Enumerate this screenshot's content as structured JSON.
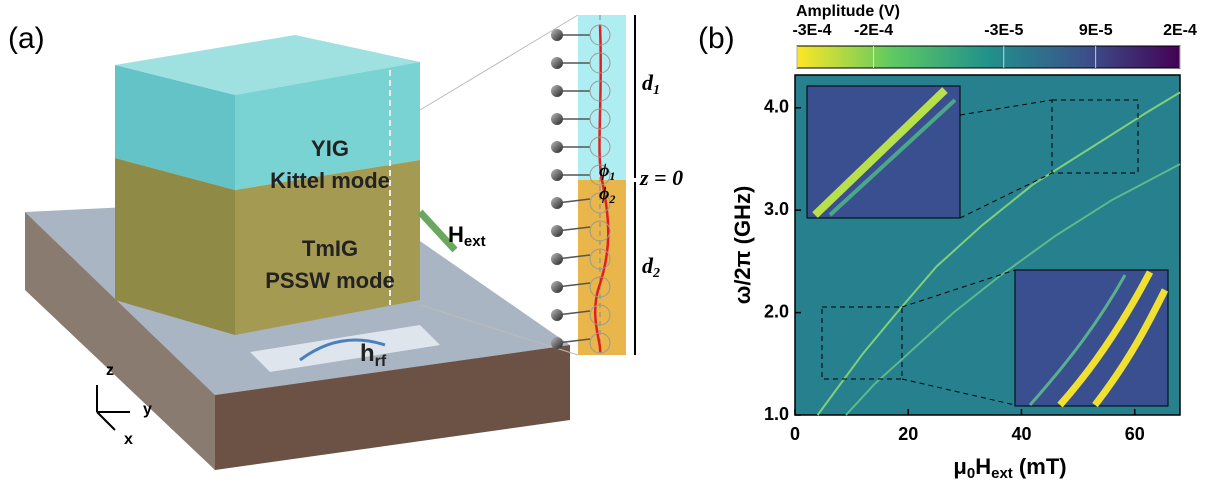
{
  "panel_a": {
    "label": "(a)",
    "yig": "YIG",
    "kittel": "Kittel mode",
    "tmig": "TmIG",
    "pssw": "PSSW mode",
    "hext": [
      "H",
      "ext"
    ],
    "hrf": [
      "h",
      "rf"
    ],
    "d1": [
      "d",
      "1"
    ],
    "d2": [
      "d",
      "2"
    ],
    "phi1": [
      "ϕ",
      "1"
    ],
    "phi2": [
      "ϕ",
      "2"
    ],
    "z0": "z = 0",
    "axis_z": "z",
    "axis_y": "y",
    "axis_x": "x"
  },
  "chart_data": {
    "type": "heatmap",
    "panel_label": "(b)",
    "colorbar_title": "Amplitude (V)",
    "colorbar_lim": [
      -0.0003,
      0.0002
    ],
    "colorbar_ticks": [
      {
        "value": -0.0003,
        "label": "-3E-4"
      },
      {
        "value": -0.0002,
        "label": "-2E-4"
      },
      {
        "value": -3e-05,
        "label": "-3E-5"
      },
      {
        "value": 9e-05,
        "label": "9E-5"
      },
      {
        "value": 0.0002,
        "label": "2E-4"
      }
    ],
    "xlabel": [
      "μ",
      "0",
      "H",
      "ext",
      " (mT)"
    ],
    "ylabel": "ω/2π (GHz)",
    "xlim": [
      0,
      68
    ],
    "ylim": [
      1.0,
      4.32
    ],
    "xticks": [
      0,
      20,
      40,
      60
    ],
    "yticks": [
      {
        "value": 1,
        "label": "1.0"
      },
      {
        "value": 2,
        "label": "2.0"
      },
      {
        "value": 3,
        "label": "3.0"
      },
      {
        "value": 4,
        "label": "4.0"
      }
    ],
    "curves": [
      {
        "x": [
          4,
          8,
          12,
          18,
          25,
          33,
          42,
          52,
          62,
          68
        ],
        "y": [
          1.0,
          1.3,
          1.6,
          2.0,
          2.45,
          2.85,
          3.25,
          3.6,
          3.95,
          4.15
        ]
      },
      {
        "x": [
          9,
          14,
          20,
          28,
          36,
          46,
          56,
          68
        ],
        "y": [
          1.0,
          1.3,
          1.6,
          2.0,
          2.35,
          2.75,
          3.1,
          3.45
        ]
      }
    ]
  }
}
